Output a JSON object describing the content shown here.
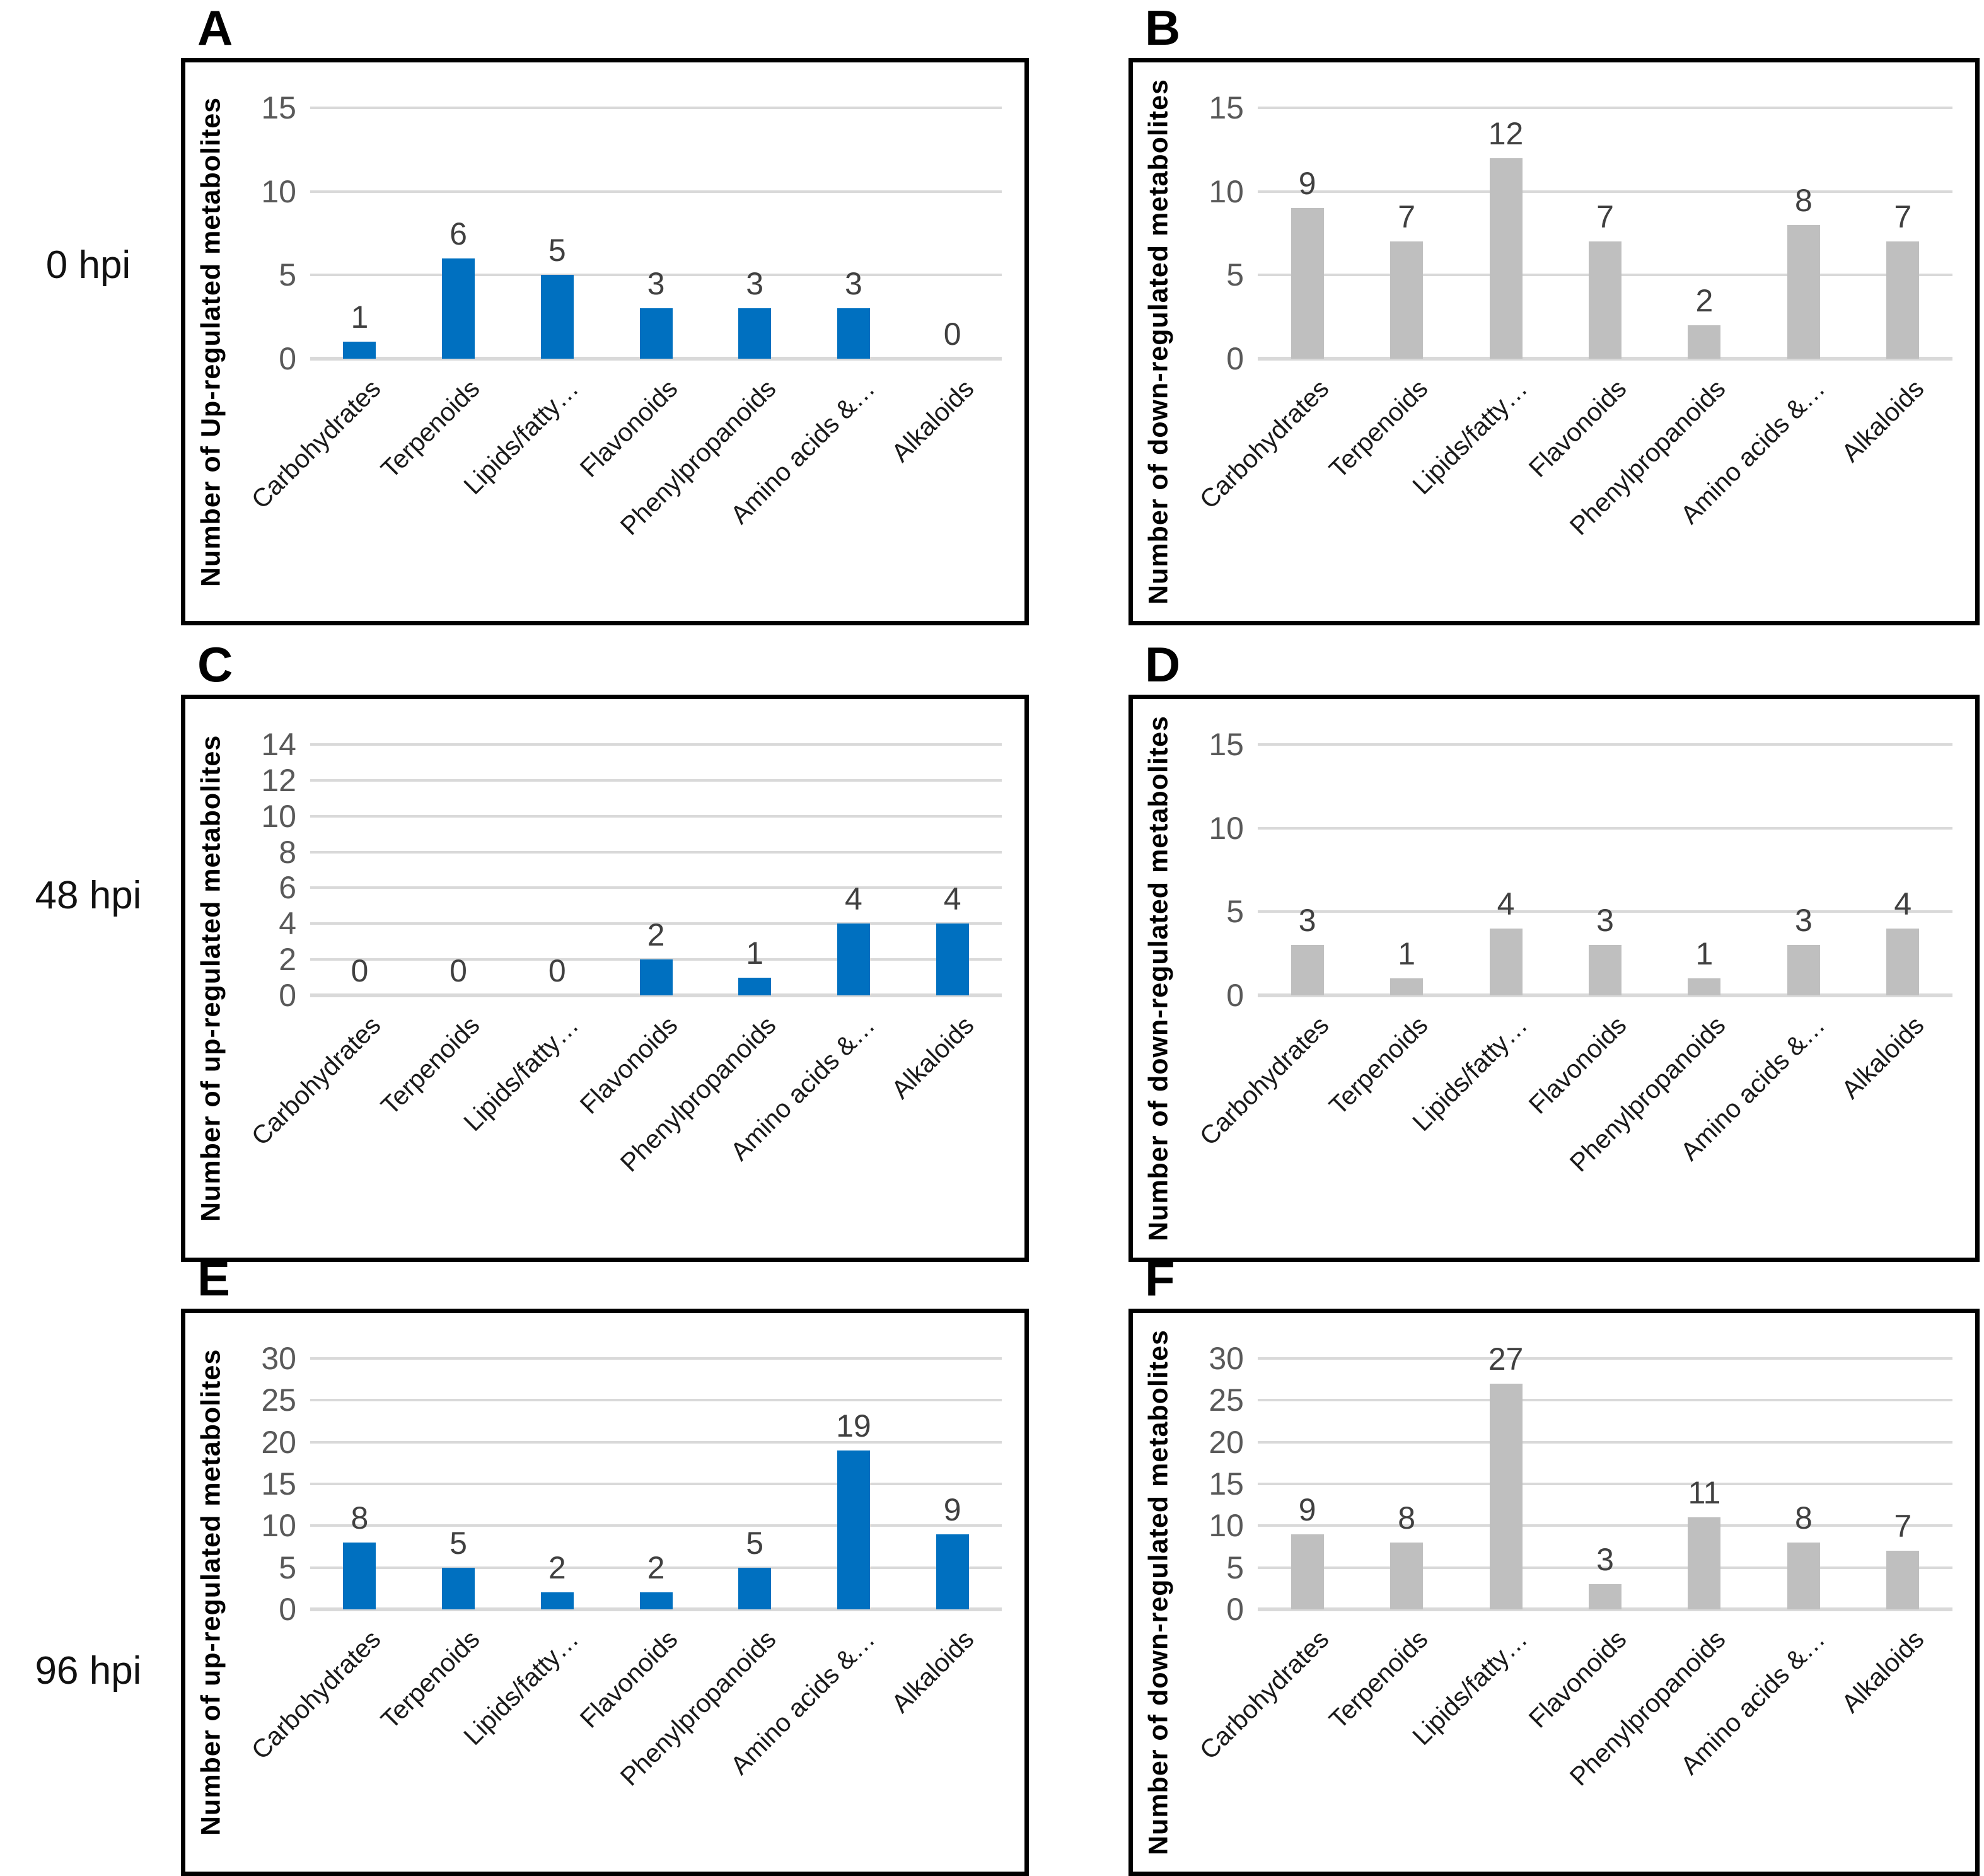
{
  "figure": {
    "row_labels": [
      "0 hpi",
      "48 hpi",
      "96 hpi"
    ],
    "categories": [
      "Carbohydrates",
      "Terpenoids",
      "Lipids/fatty…",
      "Flavonoids",
      "Phenylpropanoids",
      "Amino acids &…",
      "Alkaloids"
    ],
    "colors": {
      "up_bar": "#0070C0",
      "down_bar": "#BFBFBF",
      "gridline": "#D9D9D9",
      "tick_text": "#595959",
      "value_text": "#404040",
      "box_border": "#000000"
    }
  },
  "chart_data": [
    {
      "panel": "A",
      "row": "0 hpi",
      "direction": "up",
      "type": "bar",
      "ylabel": "Number of Up-regulated metabolites",
      "categories": [
        "Carbohydrates",
        "Terpenoids",
        "Lipids/fatty…",
        "Flavonoids",
        "Phenylpropanoids",
        "Amino acids &…",
        "Alkaloids"
      ],
      "values": [
        1,
        6,
        5,
        3,
        3,
        3,
        0
      ],
      "yticks": [
        0,
        5,
        10,
        15
      ],
      "ylim": [
        0,
        15
      ],
      "bar_color": "#0070C0",
      "grid": true,
      "data_labels": true,
      "legend": "none"
    },
    {
      "panel": "B",
      "row": "0 hpi",
      "direction": "down",
      "type": "bar",
      "ylabel": "Number of down-regulated metabolites",
      "categories": [
        "Carbohydrates",
        "Terpenoids",
        "Lipids/fatty…",
        "Flavonoids",
        "Phenylpropanoids",
        "Amino acids &…",
        "Alkaloids"
      ],
      "values": [
        9,
        7,
        12,
        7,
        2,
        8,
        7
      ],
      "yticks": [
        0,
        5,
        10,
        15
      ],
      "ylim": [
        0,
        15
      ],
      "bar_color": "#BFBFBF",
      "grid": true,
      "data_labels": true,
      "legend": "none"
    },
    {
      "panel": "C",
      "row": "48 hpi",
      "direction": "up",
      "type": "bar",
      "ylabel": "Number of up-regulated metabolites",
      "categories": [
        "Carbohydrates",
        "Terpenoids",
        "Lipids/fatty…",
        "Flavonoids",
        "Phenylpropanoids",
        "Amino acids &…",
        "Alkaloids"
      ],
      "values": [
        0,
        0,
        0,
        2,
        1,
        4,
        4
      ],
      "yticks": [
        0,
        2,
        4,
        6,
        8,
        10,
        12,
        14
      ],
      "ylim": [
        0,
        14
      ],
      "bar_color": "#0070C0",
      "grid": true,
      "data_labels": true,
      "legend": "none"
    },
    {
      "panel": "D",
      "row": "48 hpi",
      "direction": "down",
      "type": "bar",
      "ylabel": "Number of down-regulated metabolites",
      "categories": [
        "Carbohydrates",
        "Terpenoids",
        "Lipids/fatty…",
        "Flavonoids",
        "Phenylpropanoids",
        "Amino acids &…",
        "Alkaloids"
      ],
      "values": [
        3,
        1,
        4,
        3,
        1,
        3,
        4
      ],
      "yticks": [
        0,
        5,
        10,
        15
      ],
      "ylim": [
        0,
        15
      ],
      "bar_color": "#BFBFBF",
      "grid": true,
      "data_labels": true,
      "legend": "none"
    },
    {
      "panel": "E",
      "row": "96 hpi",
      "direction": "up",
      "type": "bar",
      "ylabel": "Number of up-regulated metabolites",
      "categories": [
        "Carbohydrates",
        "Terpenoids",
        "Lipids/fatty…",
        "Flavonoids",
        "Phenylpropanoids",
        "Amino acids &…",
        "Alkaloids"
      ],
      "values": [
        8,
        5,
        2,
        2,
        5,
        19,
        9
      ],
      "yticks": [
        0,
        5,
        10,
        15,
        20,
        25,
        30
      ],
      "ylim": [
        0,
        30
      ],
      "bar_color": "#0070C0",
      "grid": true,
      "data_labels": true,
      "legend": "none"
    },
    {
      "panel": "F",
      "row": "96 hpi",
      "direction": "down",
      "type": "bar",
      "ylabel": "Number of down-regulated metabolites",
      "categories": [
        "Carbohydrates",
        "Terpenoids",
        "Lipids/fatty…",
        "Flavonoids",
        "Phenylpropanoids",
        "Amino acids &…",
        "Alkaloids"
      ],
      "values": [
        9,
        8,
        27,
        3,
        11,
        8,
        7
      ],
      "yticks": [
        0,
        5,
        10,
        15,
        20,
        25,
        30
      ],
      "ylim": [
        0,
        30
      ],
      "bar_color": "#BFBFBF",
      "grid": true,
      "data_labels": true,
      "legend": "none"
    }
  ]
}
